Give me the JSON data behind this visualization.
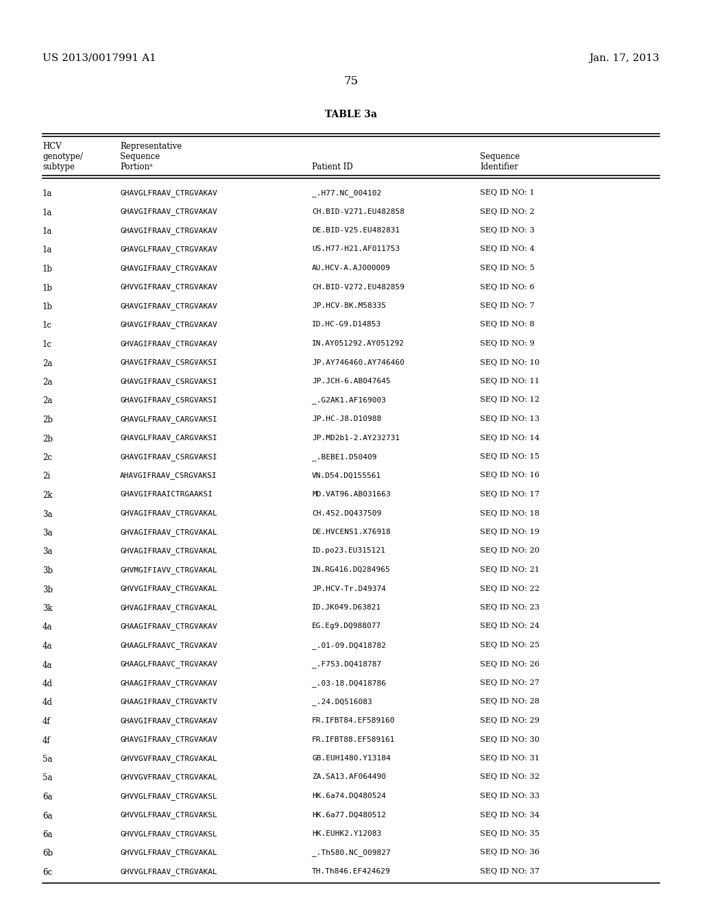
{
  "header_left": "US 2013/0017991 A1",
  "header_right": "Jan. 17, 2013",
  "page_number": "75",
  "table_title": "TABLE 3a",
  "rows": [
    [
      "1a",
      "GHAVGLFRAAV̲CTRGVAKAV",
      "_.H77.NC_004102",
      "SEQ ID NO: 1"
    ],
    [
      "1a",
      "GHAVGIFRAAV̲CTRGVAKAV",
      "CH.BID-V271.EU482858",
      "SEQ ID NO: 2"
    ],
    [
      "1a",
      "GHAVGIFRAAV̲CTRGVAKAV",
      "DE.BID-V25.EU482831",
      "SEQ ID NO: 3"
    ],
    [
      "1a",
      "GHAVGLFRAAV̲CTRGVAKAV",
      "US.H77-H21.AF011753",
      "SEQ ID NO: 4"
    ],
    [
      "1b",
      "GHAVGIFRAAV̲CTRGVAKAV",
      "AU.HCV-A.AJ000009",
      "SEQ ID NO: 5"
    ],
    [
      "1b",
      "GHVVGIFRAAV̲CTRGVAKAV",
      "CH.BID-V272.EU482859",
      "SEQ ID NO: 6"
    ],
    [
      "1b",
      "GHAVGIFRAAV̲CTRGVAKAV",
      "JP.HCV-BK.M58335",
      "SEQ ID NO: 7"
    ],
    [
      "1c",
      "GHAVGIFRAAV̲CTRGVAKAV",
      "ID.HC-G9.D14853",
      "SEQ ID NO: 8"
    ],
    [
      "1c",
      "GHVAGIFRAAV̲CTRGVAKAV",
      "IN.AY051292.AY051292",
      "SEQ ID NO: 9"
    ],
    [
      "2a",
      "GHAVGIFRAAV̲CSRGVAKSI",
      "JP.AY746460.AY746460",
      "SEQ ID NO: 10"
    ],
    [
      "2a",
      "GHAVGIFRAAV̲CSRGVAKSI",
      "JP.JCH-6.AB047645",
      "SEQ ID NO: 11"
    ],
    [
      "2a",
      "GHAVGIFRAAV̲CSRGVAKSI",
      "_.G2AK1.AF169003",
      "SEQ ID NO: 12"
    ],
    [
      "2b",
      "GHAVGLFRAAV̲CARGVAKSI",
      "JP.HC-J8.D10988",
      "SEQ ID NO: 13"
    ],
    [
      "2b",
      "GHAVGLFRAAV̲CARGVAKSI",
      "JP.MD2b1-2.AY232731",
      "SEQ ID NO: 14"
    ],
    [
      "2c",
      "GHAVGIFRAAV̲CSRGVAKSI",
      "_.BEBE1.D50409",
      "SEQ ID NO: 15"
    ],
    [
      "2i",
      "AHAVGIFRAAV̲CSRGVAKSI",
      "VN.D54.DQ155561",
      "SEQ ID NO: 16"
    ],
    [
      "2k",
      "GHAVGIFRAAICTRGAAKSI",
      "MD.VAT96.AB031663",
      "SEQ ID NO: 17"
    ],
    [
      "3a",
      "GHVAGIFRAAV̲CTRGVAKAL",
      "CH.452.DQ437509",
      "SEQ ID NO: 18"
    ],
    [
      "3a",
      "GHVAGIFRAAV̲CTRGVAKAL",
      "DE.HVCENS1.X76918",
      "SEQ ID NO: 19"
    ],
    [
      "3a",
      "GHVAGIFRAAV̲CTRGVAKAL",
      "ID.po23.EU315121",
      "SEQ ID NO: 20"
    ],
    [
      "3b",
      "GHVMGIFIAVV̲CTRGVAKAL",
      "IN.RG416.DQ284965",
      "SEQ ID NO: 21"
    ],
    [
      "3b",
      "GHVVGIFRAAV̲CTRGVAKAL",
      "JP.HCV-Tr.D49374",
      "SEQ ID NO: 22"
    ],
    [
      "3k",
      "GHVAGIFRAAV̲CTRGVAKAL",
      "ID.JK049.D63821",
      "SEQ ID NO: 23"
    ],
    [
      "4a",
      "GHAAGIFRAAV̲CTRGVAKAV",
      "EG.Eg9.DQ988077",
      "SEQ ID NO: 24"
    ],
    [
      "4a",
      "GHAAGLFRAAVC̲TRGVAKAV",
      "_.01-09.DQ418782",
      "SEQ ID NO: 25"
    ],
    [
      "4a",
      "GHAAGLFRAAVC̲TRGVAKAV",
      "_.F753.DQ418787",
      "SEQ ID NO: 26"
    ],
    [
      "4d",
      "GHAAGIFRAAV̲CTRGVAKAV",
      "_.03-18.DQ418786",
      "SEQ ID NO: 27"
    ],
    [
      "4d",
      "GHAAGIFRAAV̲CTRGVAKTV",
      "_.24.DQ516083",
      "SEQ ID NO: 28"
    ],
    [
      "4f",
      "GHAVGIFRAAV̲CTRGVAKAV",
      "FR.IFBT84.EF589160",
      "SEQ ID NO: 29"
    ],
    [
      "4f",
      "GHAVGIFRAAV̲CTRGVAKAV",
      "FR.IFBT88.EF589161",
      "SEQ ID NO: 30"
    ],
    [
      "5a",
      "GHVVGVFRAAV̲CTRGVAKAL",
      "GB.EUH1480.Y13184",
      "SEQ ID NO: 31"
    ],
    [
      "5a",
      "GHVVGVFRAAV̲CTRGVAKAL",
      "ZA.SA13.AF064490",
      "SEQ ID NO: 32"
    ],
    [
      "6a",
      "GHVVGLFRAAV̲CTRGVAKSL",
      "HK.6a74.DQ480524",
      "SEQ ID NO: 33"
    ],
    [
      "6a",
      "GHVVGLFRAAV̲CTRGVAKSL",
      "HK.6a77.DQ480512",
      "SEQ ID NO: 34"
    ],
    [
      "6a",
      "GHVVGLFRAAV̲CTRGVAKSL",
      "HK.EUHK2.Y12083",
      "SEQ ID NO: 35"
    ],
    [
      "6b",
      "GHVVGLFRAAV̲CTRGVAKAL",
      "_.Th580.NC_009827",
      "SEQ ID NO: 36"
    ],
    [
      "6c",
      "GHVVGLFRAAV̲CTRGVAKAL",
      "TH.Th846.EF424629",
      "SEQ ID NO: 37"
    ]
  ],
  "bg_color": "#ffffff",
  "text_color": "#000000"
}
